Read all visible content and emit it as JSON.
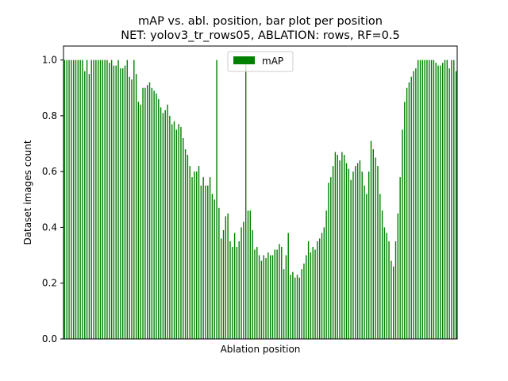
{
  "chart_data": {
    "type": "bar",
    "title": "mAP vs. abl. position, bar plot per position",
    "subtitle": "NET: yolov3_tr_rows05, ABLATION: rows, RF=0.5",
    "xlabel": "Ablation position",
    "ylabel": "Dataset images count",
    "ylim": [
      0,
      1.05
    ],
    "yticks": [
      "0.0",
      "0.2",
      "0.4",
      "0.6",
      "0.8",
      "1.0"
    ],
    "legend_position": "top-center",
    "grid": false,
    "series": [
      {
        "name": "mAP",
        "color": "#008000",
        "values": [
          1.0,
          1.0,
          1.0,
          1.0,
          1.0,
          1.0,
          1.0,
          1.0,
          1.0,
          0.96,
          1.0,
          0.95,
          1.0,
          1.0,
          1.0,
          1.0,
          1.0,
          1.0,
          1.0,
          1.0,
          0.99,
          1.0,
          0.98,
          0.98,
          1.0,
          0.97,
          0.97,
          0.98,
          1.0,
          0.94,
          0.93,
          1.0,
          0.95,
          0.85,
          0.84,
          0.9,
          0.9,
          0.91,
          0.92,
          0.9,
          0.89,
          0.88,
          0.86,
          0.83,
          0.81,
          0.82,
          0.84,
          0.8,
          0.77,
          0.78,
          0.75,
          0.77,
          0.76,
          0.72,
          0.68,
          0.66,
          0.62,
          0.58,
          0.6,
          0.6,
          0.62,
          0.55,
          0.58,
          0.55,
          0.55,
          0.58,
          0.52,
          0.5,
          1.0,
          0.47,
          0.36,
          0.39,
          0.44,
          0.45,
          0.35,
          0.33,
          0.38,
          0.33,
          0.35,
          0.4,
          0.42,
          1.0,
          0.46,
          0.46,
          0.39,
          0.32,
          0.33,
          0.3,
          0.28,
          0.3,
          0.29,
          0.31,
          0.3,
          0.3,
          0.32,
          0.32,
          0.34,
          0.33,
          0.25,
          0.3,
          0.38,
          0.23,
          0.24,
          0.22,
          0.23,
          0.22,
          0.25,
          0.27,
          0.3,
          0.35,
          0.31,
          0.33,
          0.32,
          0.35,
          0.36,
          0.38,
          0.4,
          0.46,
          0.56,
          0.58,
          0.62,
          0.67,
          0.66,
          0.64,
          0.67,
          0.66,
          0.63,
          0.61,
          0.57,
          0.6,
          0.62,
          0.63,
          0.64,
          0.6,
          0.55,
          0.52,
          0.6,
          0.71,
          0.68,
          0.65,
          0.62,
          0.52,
          0.46,
          0.4,
          0.38,
          0.35,
          0.28,
          0.26,
          0.35,
          0.45,
          0.58,
          0.75,
          0.85,
          0.9,
          0.92,
          0.94,
          0.96,
          0.97,
          1.0,
          1.0,
          1.0,
          1.0,
          1.0,
          1.0,
          1.0,
          1.0,
          0.99,
          0.98,
          0.98,
          0.99,
          1.0,
          1.0,
          0.97,
          1.0,
          1.0,
          0.96
        ]
      }
    ]
  }
}
